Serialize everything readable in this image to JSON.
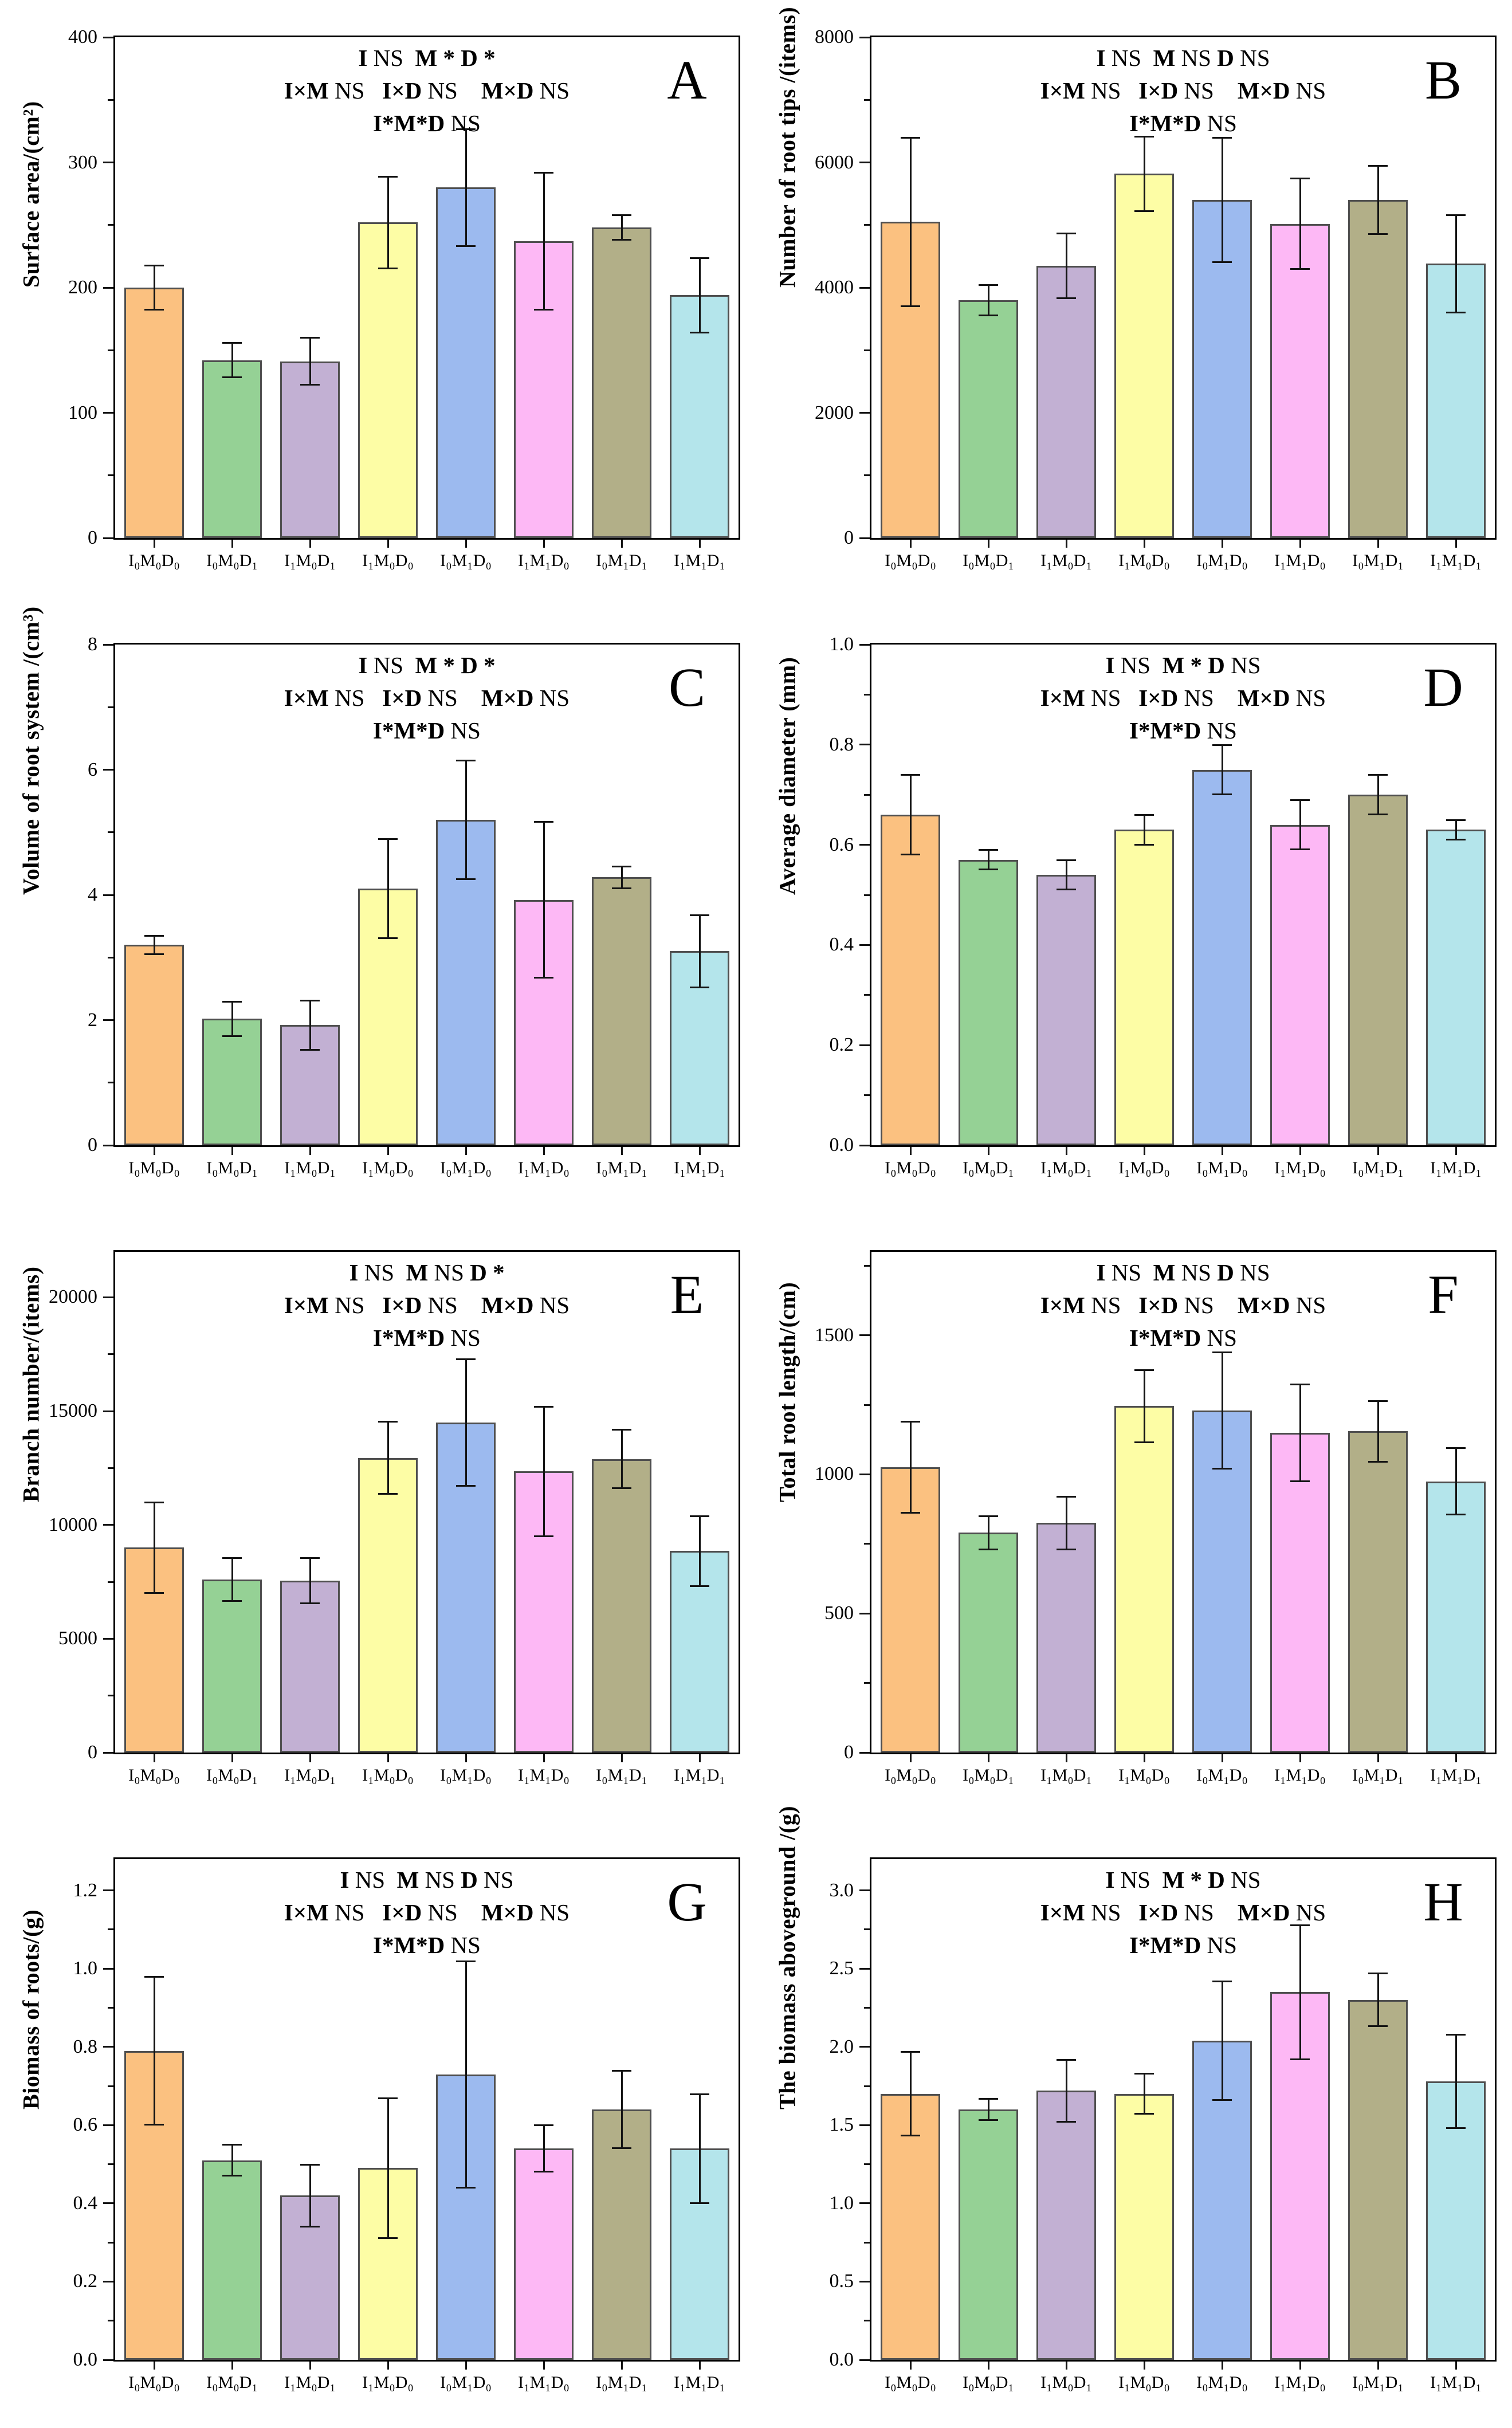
{
  "figure": {
    "background": "#ffffff",
    "axis_color": "#000000",
    "bar_border_color": "#4f4f4f",
    "error_bar_color": "#141414",
    "bar_colors": [
      "#fbc180",
      "#95d195",
      "#c2b0d3",
      "#fdfda5",
      "#9cbaef",
      "#fdb8f5",
      "#b2af88",
      "#b4e5eb"
    ],
    "panel_letters": [
      "A",
      "B",
      "C",
      "D",
      "E",
      "F",
      "G",
      "H"
    ]
  },
  "chart_data": [
    {
      "type": "bar",
      "panel": "A",
      "ylabel": "Surface area/(cm²)",
      "xlabel": "",
      "ymax": 400,
      "yticks": [
        [
          0,
          "0"
        ],
        [
          100,
          "100"
        ],
        [
          200,
          "200"
        ],
        [
          300,
          "300"
        ],
        [
          400,
          "400"
        ]
      ],
      "categories": [
        "I₀M₀D₀",
        "I₀M₀D₁",
        "I₁M₀D₁",
        "I₁M₀D₀",
        "I₀M₁D₀",
        "I₁M₁D₀",
        "I₀M₁D₁",
        "I₁M₁D₁"
      ],
      "values": [
        200,
        142,
        141,
        252,
        280,
        237,
        248,
        194
      ],
      "errors": [
        18,
        14,
        19,
        37,
        47,
        55,
        10,
        30
      ],
      "significance": [
        [
          [
            "I ",
            1
          ],
          [
            "NS  ",
            0
          ],
          [
            "M ",
            1
          ],
          [
            "* ",
            1
          ],
          [
            "D ",
            1
          ],
          [
            "*",
            1
          ]
        ],
        [
          [
            "I×M ",
            1
          ],
          [
            "NS   ",
            0
          ],
          [
            "I×D ",
            1
          ],
          [
            "NS    ",
            0
          ],
          [
            "M×D ",
            1
          ],
          [
            "NS",
            0
          ]
        ],
        [
          [
            "I*M*D ",
            1
          ],
          [
            "NS",
            0
          ]
        ]
      ]
    },
    {
      "type": "bar",
      "panel": "B",
      "ylabel": "Number of root tips /(items)",
      "xlabel": "",
      "ymax": 8000,
      "yticks": [
        [
          0,
          "0"
        ],
        [
          2000,
          "2000"
        ],
        [
          4000,
          "4000"
        ],
        [
          6000,
          "6000"
        ],
        [
          8000,
          "8000"
        ]
      ],
      "categories": [
        "I₀M₀D₀",
        "I₀M₀D₁",
        "I₁M₀D₁",
        "I₁M₀D₀",
        "I₀M₁D₀",
        "I₁M₁D₀",
        "I₀M₁D₁",
        "I₁M₁D₁"
      ],
      "values": [
        5050,
        3800,
        4350,
        5820,
        5400,
        5020,
        5400,
        4380
      ],
      "errors": [
        1350,
        250,
        520,
        600,
        1000,
        730,
        550,
        780
      ],
      "significance": [
        [
          [
            "I ",
            1
          ],
          [
            "NS  ",
            0
          ],
          [
            "M ",
            1
          ],
          [
            "NS ",
            0
          ],
          [
            "D ",
            1
          ],
          [
            "NS",
            0
          ]
        ],
        [
          [
            "I×M ",
            1
          ],
          [
            "NS   ",
            0
          ],
          [
            "I×D ",
            1
          ],
          [
            "NS    ",
            0
          ],
          [
            "M×D ",
            1
          ],
          [
            "NS",
            0
          ]
        ],
        [
          [
            "I*M*D ",
            1
          ],
          [
            "NS",
            0
          ]
        ]
      ]
    },
    {
      "type": "bar",
      "panel": "C",
      "ylabel": "Volume of root system /(cm³)",
      "xlabel": "",
      "ymax": 8,
      "yticks": [
        [
          0,
          "0"
        ],
        [
          2,
          "2"
        ],
        [
          4,
          "4"
        ],
        [
          6,
          "6"
        ],
        [
          8,
          "8"
        ]
      ],
      "categories": [
        "I₀M₀D₀",
        "I₀M₀D₁",
        "I₁M₀D₁",
        "I₁M₀D₀",
        "I₀M₁D₀",
        "I₁M₁D₀",
        "I₀M₁D₁",
        "I₁M₁D₁"
      ],
      "values": [
        3.2,
        2.02,
        1.92,
        4.1,
        5.2,
        3.92,
        4.28,
        3.1
      ],
      "errors": [
        0.15,
        0.28,
        0.4,
        0.8,
        0.95,
        1.25,
        0.18,
        0.58
      ],
      "significance": [
        [
          [
            "I ",
            1
          ],
          [
            "NS  ",
            0
          ],
          [
            "M ",
            1
          ],
          [
            "* ",
            1
          ],
          [
            "D ",
            1
          ],
          [
            "*",
            1
          ]
        ],
        [
          [
            "I×M ",
            1
          ],
          [
            "NS   ",
            0
          ],
          [
            "I×D ",
            1
          ],
          [
            "NS    ",
            0
          ],
          [
            "M×D ",
            1
          ],
          [
            "NS",
            0
          ]
        ],
        [
          [
            "I*M*D ",
            1
          ],
          [
            "NS",
            0
          ]
        ]
      ]
    },
    {
      "type": "bar",
      "panel": "D",
      "ylabel": "Average diameter (mm)",
      "xlabel": "",
      "ymax": 1.0,
      "yticks": [
        [
          0,
          "0.0"
        ],
        [
          0.2,
          "0.2"
        ],
        [
          0.4,
          "0.4"
        ],
        [
          0.6,
          "0.6"
        ],
        [
          0.8,
          "0.8"
        ],
        [
          1,
          "1.0"
        ]
      ],
      "categories": [
        "I₀M₀D₀",
        "I₀M₀D₁",
        "I₁M₀D₁",
        "I₁M₀D₀",
        "I₀M₁D₀",
        "I₁M₁D₀",
        "I₀M₁D₁",
        "I₁M₁D₁"
      ],
      "values": [
        0.66,
        0.57,
        0.54,
        0.63,
        0.75,
        0.64,
        0.7,
        0.63
      ],
      "errors": [
        0.08,
        0.02,
        0.03,
        0.03,
        0.05,
        0.05,
        0.04,
        0.02
      ],
      "significance": [
        [
          [
            "I ",
            1
          ],
          [
            "NS  ",
            0
          ],
          [
            "M ",
            1
          ],
          [
            "* ",
            1
          ],
          [
            "D ",
            1
          ],
          [
            "NS",
            0
          ]
        ],
        [
          [
            "I×M ",
            1
          ],
          [
            "NS   ",
            0
          ],
          [
            "I×D ",
            1
          ],
          [
            "NS    ",
            0
          ],
          [
            "M×D ",
            1
          ],
          [
            "NS",
            0
          ]
        ],
        [
          [
            "I*M*D ",
            1
          ],
          [
            "NS",
            0
          ]
        ]
      ]
    },
    {
      "type": "bar",
      "panel": "E",
      "ylabel": "Branch number/(items)",
      "xlabel": "",
      "ymax": 22000,
      "yticks": [
        [
          0,
          "0"
        ],
        [
          5000,
          "5000"
        ],
        [
          10000,
          "10000"
        ],
        [
          15000,
          "15000"
        ],
        [
          20000,
          "20000"
        ]
      ],
      "categories": [
        "I₀M₀D₀",
        "I₀M₀D₁",
        "I₁M₀D₁",
        "I₁M₀D₀",
        "I₀M₁D₀",
        "I₁M₁D₀",
        "I₀M₁D₁",
        "I₁M₁D₁"
      ],
      "values": [
        9000,
        7600,
        7550,
        12950,
        14500,
        12350,
        12900,
        8850
      ],
      "errors": [
        2000,
        950,
        1000,
        1600,
        2800,
        2850,
        1300,
        1550
      ],
      "significance": [
        [
          [
            "I ",
            1
          ],
          [
            "NS  ",
            0
          ],
          [
            "M ",
            1
          ],
          [
            "NS ",
            0
          ],
          [
            "D ",
            1
          ],
          [
            "*",
            1
          ]
        ],
        [
          [
            "I×M ",
            1
          ],
          [
            "NS   ",
            0
          ],
          [
            "I×D ",
            1
          ],
          [
            "NS    ",
            0
          ],
          [
            "M×D ",
            1
          ],
          [
            "NS",
            0
          ]
        ],
        [
          [
            "I*M*D ",
            1
          ],
          [
            "NS",
            0
          ]
        ]
      ]
    },
    {
      "type": "bar",
      "panel": "F",
      "ylabel": "Total root length/(cm)",
      "xlabel": "",
      "ymax": 1800,
      "yticks": [
        [
          0,
          "0"
        ],
        [
          500,
          "500"
        ],
        [
          1000,
          "1000"
        ],
        [
          1500,
          "1500"
        ]
      ],
      "categories": [
        "I₀M₀D₀",
        "I₀M₀D₁",
        "I₁M₀D₁",
        "I₁M₀D₀",
        "I₀M₁D₀",
        "I₁M₁D₀",
        "I₀M₁D₁",
        "I₁M₁D₁"
      ],
      "values": [
        1025,
        790,
        825,
        1245,
        1230,
        1150,
        1155,
        975
      ],
      "errors": [
        165,
        60,
        95,
        130,
        210,
        175,
        110,
        120
      ],
      "significance": [
        [
          [
            "I ",
            1
          ],
          [
            "NS  ",
            0
          ],
          [
            "M ",
            1
          ],
          [
            "NS ",
            0
          ],
          [
            "D ",
            1
          ],
          [
            "NS",
            0
          ]
        ],
        [
          [
            "I×M ",
            1
          ],
          [
            "NS   ",
            0
          ],
          [
            "I×D ",
            1
          ],
          [
            "NS    ",
            0
          ],
          [
            "M×D ",
            1
          ],
          [
            "NS",
            0
          ]
        ],
        [
          [
            "I*M*D ",
            1
          ],
          [
            "NS",
            0
          ]
        ]
      ]
    },
    {
      "type": "bar",
      "panel": "G",
      "ylabel": "Biomass of roots/(g)",
      "xlabel": "",
      "ymax": 1.28,
      "yticks": [
        [
          0,
          "0.0"
        ],
        [
          0.2,
          "0.2"
        ],
        [
          0.4,
          "0.4"
        ],
        [
          0.6,
          "0.6"
        ],
        [
          0.8,
          "0.8"
        ],
        [
          1,
          "1.0"
        ],
        [
          1.2,
          "1.2"
        ]
      ],
      "categories": [
        "I₀M₀D₀",
        "I₀M₀D₁",
        "I₁M₀D₁",
        "I₁M₀D₀",
        "I₀M₁D₀",
        "I₁M₁D₀",
        "I₀M₁D₁",
        "I₁M₁D₁"
      ],
      "values": [
        0.79,
        0.51,
        0.42,
        0.49,
        0.73,
        0.54,
        0.64,
        0.54
      ],
      "errors": [
        0.19,
        0.04,
        0.08,
        0.18,
        0.29,
        0.06,
        0.1,
        0.14
      ],
      "significance": [
        [
          [
            "I ",
            1
          ],
          [
            "NS  ",
            0
          ],
          [
            "M ",
            1
          ],
          [
            "NS ",
            0
          ],
          [
            "D ",
            1
          ],
          [
            "NS",
            0
          ]
        ],
        [
          [
            "I×M ",
            1
          ],
          [
            "NS   ",
            0
          ],
          [
            "I×D ",
            1
          ],
          [
            "NS    ",
            0
          ],
          [
            "M×D ",
            1
          ],
          [
            "NS",
            0
          ]
        ],
        [
          [
            "I*M*D ",
            1
          ],
          [
            "NS",
            0
          ]
        ]
      ]
    },
    {
      "type": "bar",
      "panel": "H",
      "ylabel": "The biomass aboveground /(g)",
      "xlabel": "",
      "ymax": 3.2,
      "yticks": [
        [
          0,
          "0.0"
        ],
        [
          0.5,
          "0.5"
        ],
        [
          1,
          "1.0"
        ],
        [
          1.5,
          "1.5"
        ],
        [
          2,
          "2.0"
        ],
        [
          2.5,
          "2.5"
        ],
        [
          3,
          "3.0"
        ]
      ],
      "categories": [
        "I₀M₀D₀",
        "I₀M₀D₁",
        "I₁M₀D₁",
        "I₁M₀D₀",
        "I₀M₁D₀",
        "I₁M₁D₀",
        "I₀M₁D₁",
        "I₁M₁D₁"
      ],
      "values": [
        1.7,
        1.6,
        1.72,
        1.7,
        2.04,
        2.35,
        2.3,
        1.78
      ],
      "errors": [
        0.27,
        0.07,
        0.2,
        0.13,
        0.38,
        0.43,
        0.17,
        0.3
      ],
      "significance": [
        [
          [
            "I ",
            1
          ],
          [
            "NS  ",
            0
          ],
          [
            "M ",
            1
          ],
          [
            "* ",
            1
          ],
          [
            "D ",
            1
          ],
          [
            "NS",
            0
          ]
        ],
        [
          [
            "I×M ",
            1
          ],
          [
            "NS   ",
            0
          ],
          [
            "I×D ",
            1
          ],
          [
            "NS    ",
            0
          ],
          [
            "M×D ",
            1
          ],
          [
            "NS",
            0
          ]
        ],
        [
          [
            "I*M*D ",
            1
          ],
          [
            "NS",
            0
          ]
        ]
      ]
    }
  ]
}
